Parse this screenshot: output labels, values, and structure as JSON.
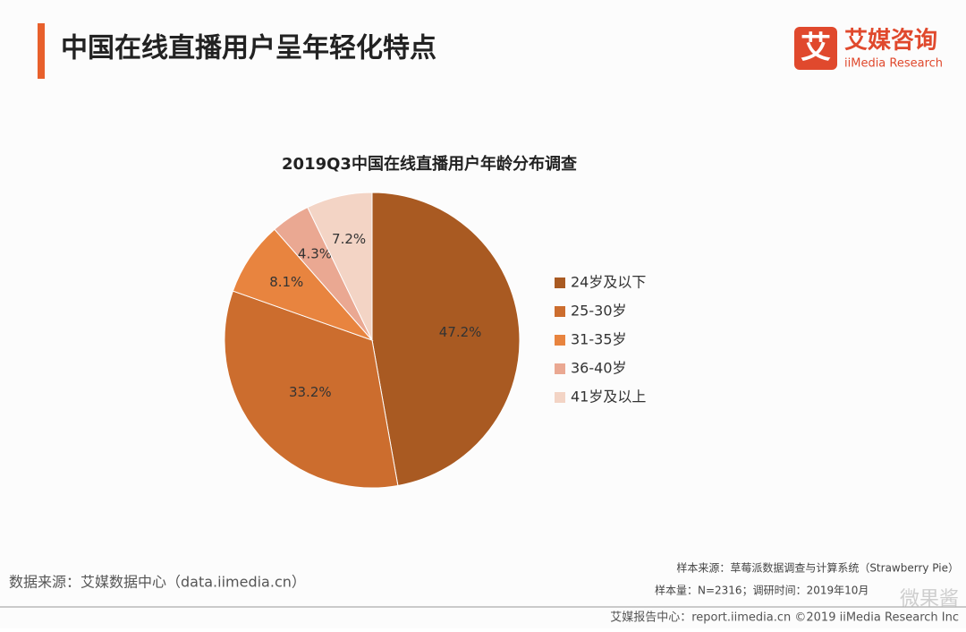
{
  "header": {
    "title": "中国在线直播用户呈年轻化特点",
    "logo_mark": "艾",
    "logo_name": "艾媒咨询",
    "logo_sub": "iiMedia Research"
  },
  "chart_data": {
    "type": "pie",
    "title": "2019Q3中国在线直播用户年龄分布调查",
    "categories": [
      "24岁及以下",
      "25-30岁",
      "31-35岁",
      "36-40岁",
      "41岁及以上"
    ],
    "values": [
      47.2,
      33.2,
      8.1,
      4.3,
      7.2
    ],
    "value_labels": [
      "47.2%",
      "33.2%",
      "8.1%",
      "4.3%",
      "7.2%"
    ],
    "colors": [
      "#a95a22",
      "#cc6d2e",
      "#e8843f",
      "#eaa892",
      "#f3d4c5"
    ],
    "legend": "right"
  },
  "footer": {
    "source": "数据来源：艾媒数据中心（data.iimedia.cn）",
    "sample_source": "样本来源：草莓派数据调查与计算系统（Strawberry Pie）",
    "sample_size": "样本量：N=2316；调研时间：2019年10月",
    "report_center": "艾媒报告中心：report.iimedia.cn   ©2019  iiMedia Research  Inc",
    "watermark": "微果酱"
  }
}
